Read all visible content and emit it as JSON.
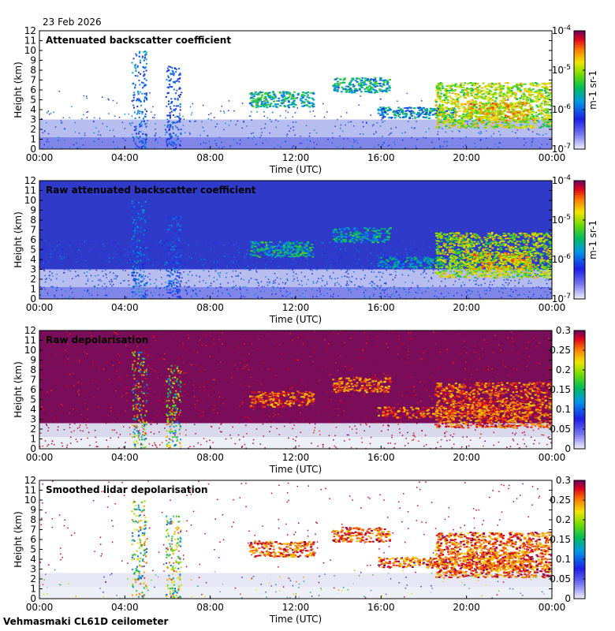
{
  "date": "23 Feb 2026",
  "footer": "Vehmasmaki CL61D ceilometer",
  "chart_data": [
    {
      "type": "heatmap",
      "title": "Attenuated backscatter coefficient",
      "xlabel": "Time (UTC)",
      "ylabel": "Height (km)",
      "x_ticks": [
        "00:00",
        "04:00",
        "08:00",
        "12:00",
        "16:00",
        "20:00",
        "00:00"
      ],
      "y_ticks": [
        "0",
        "1",
        "2",
        "3",
        "4",
        "5",
        "6",
        "7",
        "8",
        "9",
        "10",
        "11",
        "12"
      ],
      "ylim": [
        0,
        12
      ],
      "colorbar": {
        "scale": "log",
        "range": [
          1e-07,
          0.0001
        ],
        "ticks": [
          "10-7",
          "10-6",
          "10-5",
          "10-4"
        ],
        "unit": "m-1 sr-1"
      }
    },
    {
      "type": "heatmap",
      "title": "Raw attenuated backscatter coefficient",
      "xlabel": "Time (UTC)",
      "ylabel": "Height (km)",
      "x_ticks": [
        "00:00",
        "04:00",
        "08:00",
        "12:00",
        "16:00",
        "20:00",
        "00:00"
      ],
      "y_ticks": [
        "0",
        "1",
        "2",
        "3",
        "4",
        "5",
        "6",
        "7",
        "8",
        "9",
        "10",
        "11",
        "12"
      ],
      "ylim": [
        0,
        12
      ],
      "colorbar": {
        "scale": "log",
        "range": [
          1e-07,
          0.0001
        ],
        "ticks": [
          "10-7",
          "10-6",
          "10-5",
          "10-4"
        ],
        "unit": "m-1 sr-1"
      }
    },
    {
      "type": "heatmap",
      "title": "Raw depolarisation",
      "xlabel": "Time (UTC)",
      "ylabel": "Height (km)",
      "x_ticks": [
        "00:00",
        "04:00",
        "08:00",
        "12:00",
        "16:00",
        "20:00",
        "00:00"
      ],
      "y_ticks": [
        "0",
        "1",
        "2",
        "3",
        "4",
        "5",
        "6",
        "7",
        "8",
        "9",
        "10",
        "11",
        "12"
      ],
      "ylim": [
        0,
        12
      ],
      "colorbar": {
        "scale": "linear",
        "range": [
          0,
          0.3
        ],
        "ticks": [
          "0",
          "0.05",
          "0.1",
          "0.15",
          "0.2",
          "0.25",
          "0.3"
        ]
      }
    },
    {
      "type": "heatmap",
      "title": "Smoothed lidar depolarisation",
      "xlabel": "Time (UTC)",
      "ylabel": "Height (km)",
      "x_ticks": [
        "00:00",
        "04:00",
        "08:00",
        "12:00",
        "16:00",
        "20:00",
        "00:00"
      ],
      "y_ticks": [
        "0",
        "1",
        "2",
        "3",
        "4",
        "5",
        "6",
        "7",
        "8",
        "9",
        "10",
        "11",
        "12"
      ],
      "ylim": [
        0,
        12
      ],
      "colorbar": {
        "scale": "linear",
        "range": [
          0,
          0.3
        ],
        "ticks": [
          "0",
          "0.05",
          "0.1",
          "0.15",
          "0.2",
          "0.25",
          "0.3"
        ]
      }
    }
  ]
}
